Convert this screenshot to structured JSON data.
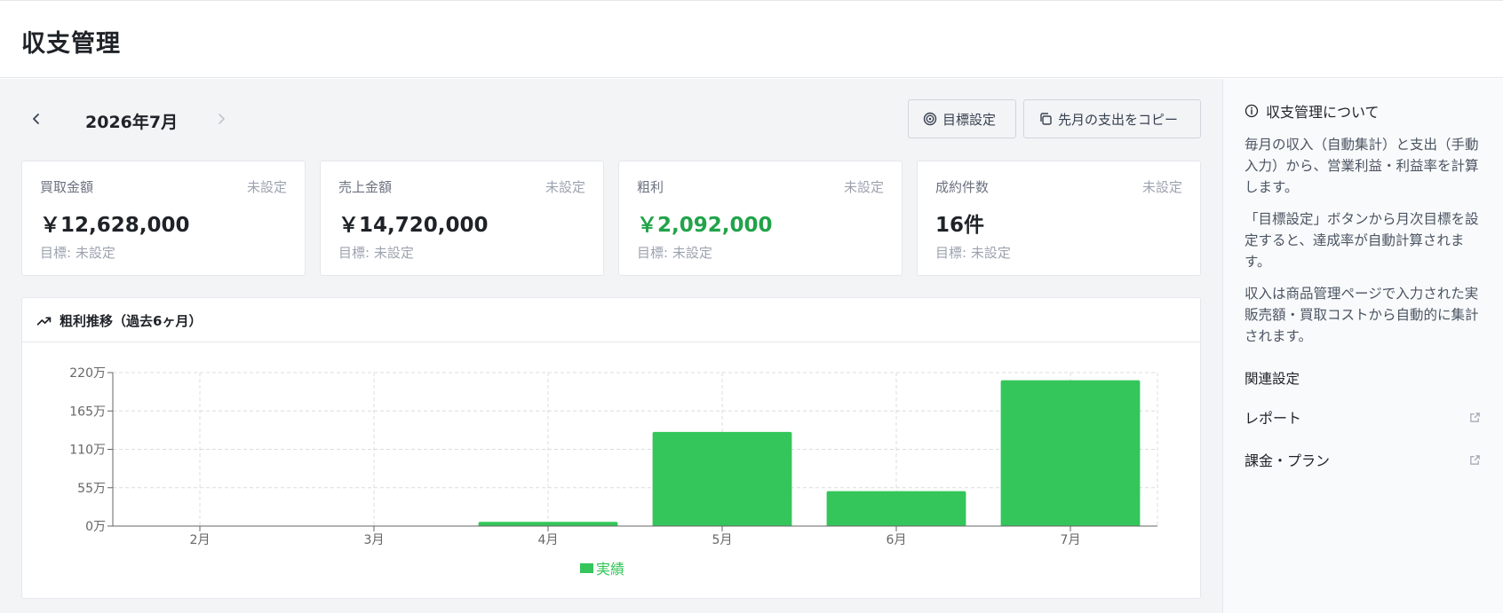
{
  "header": {
    "title": "収支管理"
  },
  "month_nav": {
    "label": "2026年7月"
  },
  "actions": {
    "goal_label": "目標設定",
    "copy_label": "先月の支出をコピー"
  },
  "cards": [
    {
      "label": "買取金額",
      "status": "未設定",
      "value": "￥12,628,000",
      "target": "目標: 未設定"
    },
    {
      "label": "売上金額",
      "status": "未設定",
      "value": "￥14,720,000",
      "target": "目標: 未設定"
    },
    {
      "label": "粗利",
      "status": "未設定",
      "value": "￥2,092,000",
      "target": "目標: 未設定"
    },
    {
      "label": "成約件数",
      "status": "未設定",
      "value": "16件",
      "target": "目標: 未設定"
    }
  ],
  "chart": {
    "title": "粗利推移（過去6ヶ月）"
  },
  "chart_data": {
    "type": "bar",
    "categories": [
      "2月",
      "3月",
      "4月",
      "5月",
      "6月",
      "7月"
    ],
    "series": [
      {
        "name": "実績",
        "values": [
          0,
          0,
          6,
          135,
          50,
          209
        ],
        "color": "#34c65a"
      }
    ],
    "yticks": [
      "0万",
      "55万",
      "110万",
      "165万",
      "220万"
    ],
    "ylim": [
      0,
      220
    ],
    "grid": true,
    "legend": "bottom"
  },
  "sidebar": {
    "about_title": "収支管理について",
    "paragraphs": [
      "毎月の収入（自動集計）と支出（手動入力）から、営業利益・利益率を計算します。",
      "「目標設定」ボタンから月次目標を設定すると、達成率が自動計算されます。",
      "収入は商品管理ページで入力された実販売額・買取コストから自動的に集計されます。"
    ],
    "related_title": "関連設定",
    "links": [
      "レポート",
      "課金・プラン"
    ]
  }
}
